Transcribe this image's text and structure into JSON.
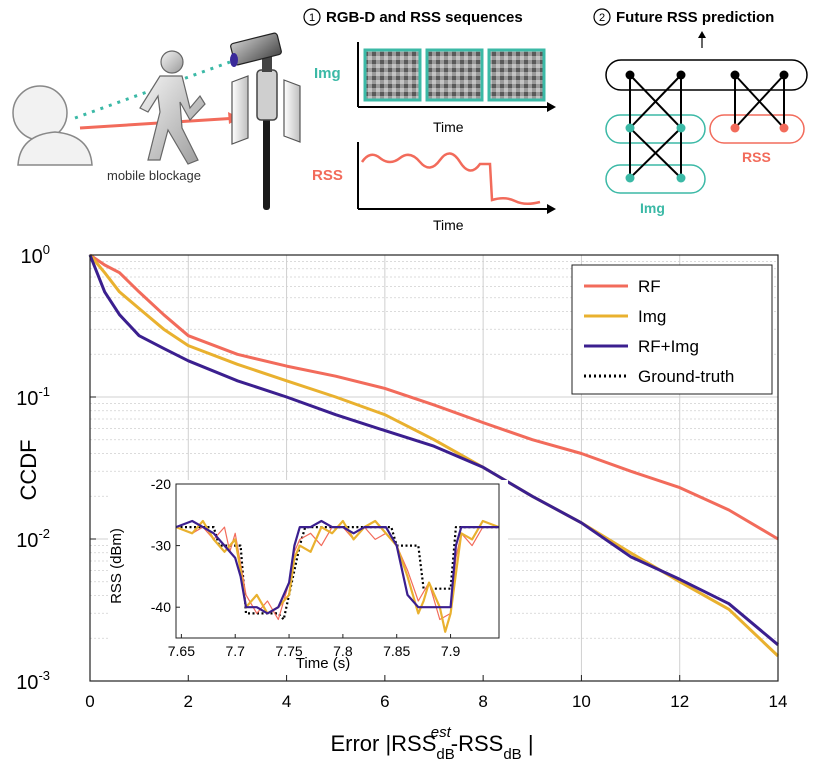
{
  "colors": {
    "rf": "#f26b5b",
    "img": "#e9b12f",
    "fused": "#3b1f8f",
    "ground": "#000000",
    "teal": "#3bb9a6",
    "grid": "#d0d0d0"
  },
  "diagram": {
    "step1": "1",
    "step1_title": "RGB-D and RSS sequences",
    "step2": "2",
    "step2_title": "Future RSS prediction",
    "blockage_label": "mobile blockage",
    "img_label": "Img",
    "rss_label": "RSS",
    "time_label_top": "Time",
    "time_label_bottom": "Time",
    "net_rss_label": "RSS",
    "net_img_label": "Img"
  },
  "chart_data": [
    {
      "type": "line",
      "name": "main-ccdf",
      "xlabel_main": "Error |RSS",
      "xlabel_sup": "est",
      "xlabel_sub1": "dB",
      "xlabel_mid": "-RSS",
      "xlabel_sub2": "dB",
      "xlabel_end": " |",
      "ylabel": "CCDF",
      "xlim": [
        0,
        14
      ],
      "ylim": [
        0.001,
        1
      ],
      "yscale": "log",
      "xticks": [
        0,
        2,
        4,
        6,
        8,
        10,
        12,
        14
      ],
      "ytick_base": "10",
      "yticks": [
        {
          "exp": "0",
          "value": 1
        },
        {
          "exp": "-1",
          "value": 0.1
        },
        {
          "exp": "-2",
          "value": 0.01
        },
        {
          "exp": "-3",
          "value": 0.001
        }
      ],
      "legend_position": "top-right",
      "series": [
        {
          "name": "RF",
          "key": "rf",
          "dashed": false,
          "x": [
            0,
            0.3,
            0.6,
            1,
            1.5,
            2,
            3,
            4,
            5,
            6,
            7,
            8,
            9,
            10,
            11,
            12,
            13,
            14
          ],
          "y": [
            1,
            0.85,
            0.75,
            0.55,
            0.38,
            0.27,
            0.2,
            0.165,
            0.14,
            0.115,
            0.088,
            0.066,
            0.05,
            0.04,
            0.03,
            0.023,
            0.016,
            0.01
          ]
        },
        {
          "name": "Img",
          "key": "img",
          "dashed": false,
          "x": [
            0,
            0.3,
            0.6,
            1,
            1.5,
            2,
            3,
            4,
            5,
            6,
            7,
            8,
            9,
            10,
            11,
            12,
            13,
            14
          ],
          "y": [
            1,
            0.75,
            0.55,
            0.42,
            0.3,
            0.23,
            0.17,
            0.13,
            0.1,
            0.075,
            0.05,
            0.032,
            0.02,
            0.013,
            0.008,
            0.005,
            0.0032,
            0.0015
          ]
        },
        {
          "name": "RF+Img",
          "key": "fused",
          "dashed": false,
          "x": [
            0,
            0.3,
            0.6,
            1,
            1.5,
            2,
            3,
            4,
            5,
            6,
            7,
            8,
            9,
            10,
            11,
            12,
            13,
            14
          ],
          "y": [
            1,
            0.55,
            0.38,
            0.27,
            0.22,
            0.18,
            0.13,
            0.1,
            0.075,
            0.058,
            0.045,
            0.032,
            0.02,
            0.013,
            0.0075,
            0.0052,
            0.0035,
            0.0018
          ]
        },
        {
          "name": "Ground-truth",
          "key": "ground",
          "dashed": true,
          "x": [],
          "y": []
        }
      ]
    },
    {
      "type": "line",
      "name": "inset-rss",
      "xlabel": "Time (s)",
      "ylabel": "RSS (dBm)",
      "xlim": [
        7.645,
        7.945
      ],
      "ylim": [
        -45,
        -20
      ],
      "xticks": [
        7.65,
        7.7,
        7.75,
        7.8,
        7.85,
        7.9
      ],
      "xtick_labels": [
        "7.65",
        "7.7",
        "7.75",
        "7.8",
        "7.85",
        "7.9"
      ],
      "yticks": [
        -20,
        -30,
        -40
      ],
      "series": [
        {
          "name": "Ground-truth",
          "key": "ground",
          "x": [
            7.645,
            7.68,
            7.685,
            7.705,
            7.71,
            7.74,
            7.745,
            7.76,
            7.765,
            7.845,
            7.85,
            7.87,
            7.875,
            7.9,
            7.905,
            7.945
          ],
          "y": [
            -27,
            -27,
            -30,
            -30,
            -41,
            -41,
            -42,
            -30,
            -27,
            -27,
            -30,
            -30,
            -37,
            -37,
            -27,
            -27
          ]
        },
        {
          "name": "RF",
          "key": "rf",
          "x": [
            7.645,
            7.66,
            7.67,
            7.68,
            7.69,
            7.695,
            7.7,
            7.705,
            7.71,
            7.72,
            7.73,
            7.74,
            7.75,
            7.755,
            7.76,
            7.77,
            7.78,
            7.79,
            7.8,
            7.81,
            7.82,
            7.83,
            7.84,
            7.85,
            7.86,
            7.87,
            7.88,
            7.89,
            7.9,
            7.905,
            7.91,
            7.92,
            7.93,
            7.945
          ],
          "y": [
            -27,
            -28,
            -27,
            -29,
            -27,
            -31,
            -28,
            -33,
            -38,
            -41,
            -39,
            -42,
            -36,
            -31,
            -29,
            -28,
            -30,
            -27,
            -27,
            -29,
            -27,
            -29,
            -28,
            -30,
            -34,
            -39,
            -36,
            -42,
            -41,
            -32,
            -28,
            -30,
            -27,
            -27
          ]
        },
        {
          "name": "Img",
          "key": "img",
          "x": [
            7.645,
            7.66,
            7.67,
            7.68,
            7.69,
            7.7,
            7.705,
            7.71,
            7.72,
            7.73,
            7.74,
            7.75,
            7.755,
            7.76,
            7.77,
            7.78,
            7.79,
            7.8,
            7.81,
            7.82,
            7.83,
            7.84,
            7.85,
            7.86,
            7.87,
            7.875,
            7.88,
            7.89,
            7.895,
            7.9,
            7.91,
            7.92,
            7.93,
            7.945
          ],
          "y": [
            -27,
            -28,
            -26,
            -29,
            -31,
            -29,
            -34,
            -40,
            -38,
            -41,
            -40,
            -38,
            -32,
            -30,
            -31,
            -27,
            -28,
            -26,
            -29,
            -27,
            -26,
            -28,
            -30,
            -35,
            -41,
            -39,
            -36,
            -40,
            -44,
            -41,
            -28,
            -29,
            -26,
            -27
          ]
        },
        {
          "name": "RF+Img",
          "key": "fused",
          "x": [
            7.645,
            7.66,
            7.67,
            7.68,
            7.69,
            7.7,
            7.705,
            7.71,
            7.72,
            7.73,
            7.74,
            7.75,
            7.755,
            7.76,
            7.77,
            7.78,
            7.79,
            7.8,
            7.81,
            7.82,
            7.83,
            7.84,
            7.85,
            7.86,
            7.87,
            7.88,
            7.89,
            7.9,
            7.905,
            7.91,
            7.92,
            7.93,
            7.945
          ],
          "y": [
            -27,
            -26,
            -27,
            -28,
            -30,
            -32,
            -35,
            -40,
            -40,
            -41,
            -40,
            -36,
            -30,
            -27,
            -27,
            -26,
            -27,
            -27,
            -28,
            -27,
            -27,
            -27,
            -30,
            -38,
            -40,
            -40,
            -40,
            -40,
            -30,
            -27,
            -27,
            -27,
            -27
          ]
        }
      ]
    }
  ]
}
